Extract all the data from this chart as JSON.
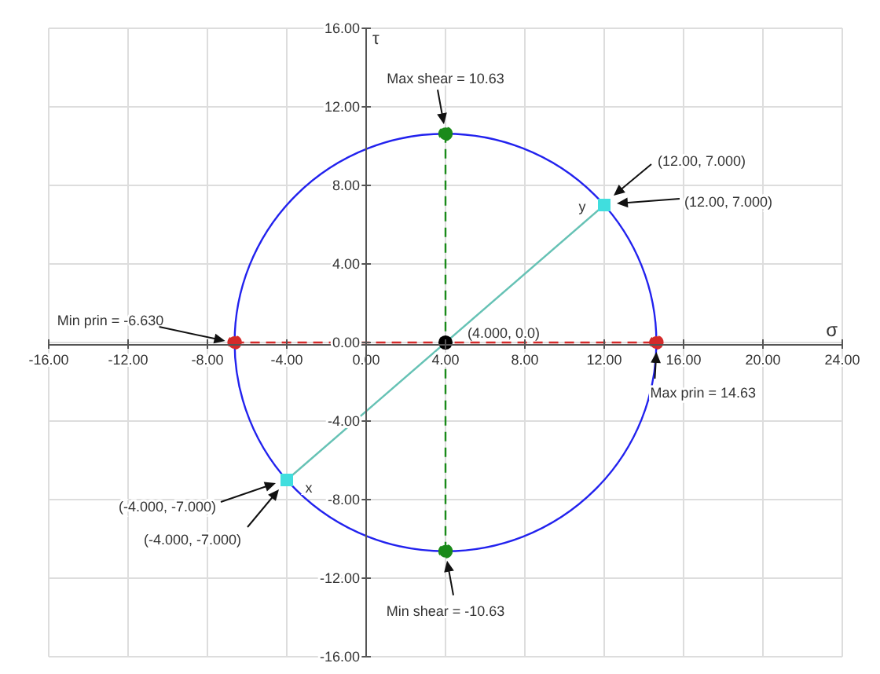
{
  "chart_data": {
    "type": "line",
    "xlabel": "σ",
    "ylabel": "τ",
    "grid": true,
    "xlim": [
      -16,
      24
    ],
    "ylim": [
      -16,
      16
    ],
    "xticks": [
      {
        "value": -16,
        "label": "-16.00"
      },
      {
        "value": -12,
        "label": "-12.00"
      },
      {
        "value": -8,
        "label": "-8.00"
      },
      {
        "value": -4,
        "label": "-4.00"
      },
      {
        "value": 0,
        "label": "0.00"
      },
      {
        "value": 4,
        "label": "4.00"
      },
      {
        "value": 8,
        "label": "8.00"
      },
      {
        "value": 12,
        "label": "12.00"
      },
      {
        "value": 16,
        "label": "16.00"
      },
      {
        "value": 20,
        "label": "20.00"
      },
      {
        "value": 24,
        "label": "24.00"
      }
    ],
    "yticks": [
      {
        "value": -16,
        "label": "-16.00"
      },
      {
        "value": -12,
        "label": "-12.00"
      },
      {
        "value": -8,
        "label": "-8.00"
      },
      {
        "value": -4,
        "label": "-4.00"
      },
      {
        "value": 0,
        "label": "0.00"
      },
      {
        "value": 4,
        "label": "4.00"
      },
      {
        "value": 8,
        "label": "8.00"
      },
      {
        "value": 12,
        "label": "12.00"
      },
      {
        "value": 16,
        "label": "16.00"
      }
    ],
    "series": [
      {
        "color": "#d42a2a",
        "marker": "circle",
        "line_style": "dashed",
        "x": [
          -6.63,
          14.63
        ],
        "values": [
          0,
          0
        ]
      },
      {
        "color": "#1a8a1a",
        "marker": "circle",
        "line_style": "dashed",
        "x": [
          4,
          4
        ],
        "values": [
          -10.63,
          10.63
        ]
      },
      {
        "color": "#66c2b5",
        "marker": "none",
        "line_style": "solid",
        "x": [
          -4,
          12
        ],
        "values": [
          -7,
          7
        ]
      },
      {
        "type": "scatter",
        "color": "#40dede",
        "marker": "square",
        "x": [
          -4,
          12
        ],
        "values": [
          -7,
          7
        ]
      },
      {
        "type": "scatter",
        "color": "#000000",
        "marker": "circle",
        "x": [
          4
        ],
        "values": [
          0
        ]
      }
    ],
    "annotations": [
      "Max shear = 10.63",
      "(12.00, 7.000)",
      "(12.00, 7.000)",
      "Min prin = -6.630",
      "Max prin = 14.63",
      {
        "text": "(4.000, 0.0)",
        "x": 4,
        "y": 0
      },
      "(-4.000, -7.000)",
      "(-4.000, -7.000)",
      "Min shear = -10.63",
      {
        "text": "x",
        "x": -4,
        "y": -7
      },
      {
        "text": "y",
        "x": 12,
        "y": 7
      }
    ]
  }
}
